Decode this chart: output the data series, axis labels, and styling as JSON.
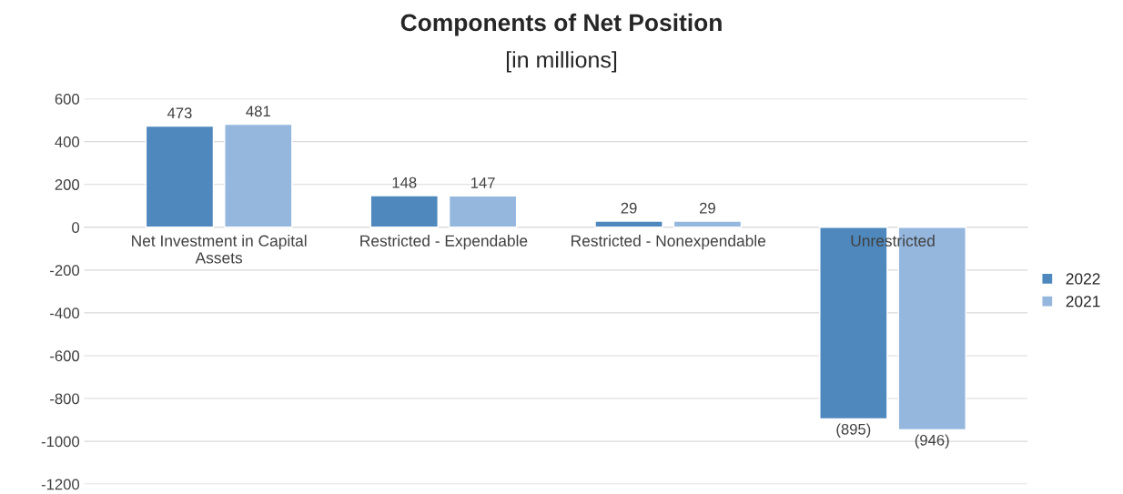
{
  "chart_data": {
    "type": "bar",
    "title": "Components of Net Position",
    "subtitle": "[in millions]",
    "categories": [
      "Net Investment in Capital\nAssets",
      "Restricted - Expendable",
      "Restricted - Nonexpendable",
      "Unrestricted"
    ],
    "series": [
      {
        "name": "2022",
        "color": "#4f88bd",
        "values": [
          473,
          148,
          29,
          -895
        ],
        "value_labels": [
          "473",
          "148",
          "29",
          "(895)"
        ]
      },
      {
        "name": "2021",
        "color": "#95b7de",
        "values": [
          481,
          147,
          29,
          -946
        ],
        "value_labels": [
          "481",
          "147",
          "29",
          "(946)"
        ]
      }
    ],
    "ylim": [
      -1200,
      600
    ],
    "yticks": [
      -1200,
      -1000,
      -800,
      -600,
      -400,
      -200,
      0,
      200,
      400,
      600
    ],
    "grid": "y",
    "legend": "right"
  }
}
